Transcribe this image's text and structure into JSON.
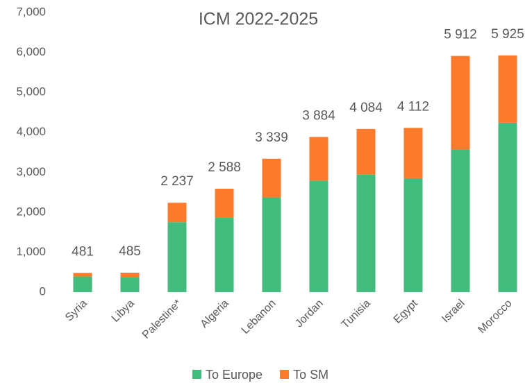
{
  "chart_data": {
    "type": "stacked_bar",
    "title": "ICM 2022-2025",
    "categories": [
      "Syria",
      "Libya",
      "Palestine*",
      "Algeria",
      "Lebanon",
      "Jordan",
      "Tunisia",
      "Egypt",
      "Israel",
      "Morocco"
    ],
    "series": [
      {
        "name": "To Europe",
        "color": "#43bb7d",
        "values": [
          390,
          380,
          1750,
          1860,
          2370,
          2790,
          2940,
          2850,
          3570,
          4240
        ]
      },
      {
        "name": "To SM",
        "color": "#fb7a2c",
        "values": [
          91,
          105,
          487,
          728,
          969,
          1094,
          1144,
          1262,
          2342,
          1685
        ]
      }
    ],
    "totals": [
      481,
      485,
      2237,
      2588,
      3339,
      3884,
      4084,
      4112,
      5912,
      5925
    ],
    "total_labels": [
      "481",
      "485",
      "2 237",
      "2 588",
      "3 339",
      "3 884",
      "4 084",
      "4 112",
      "5 912",
      "5 925"
    ],
    "ylim": [
      0,
      7000
    ],
    "yticks": [
      0,
      {
        "value": 1000,
        "label": "1,000"
      },
      {
        "value": 2000,
        "label": "2,000"
      },
      {
        "value": 3000,
        "label": "3,000"
      },
      {
        "value": 4000,
        "label": "4,000"
      },
      {
        "value": 5000,
        "label": "5,000"
      },
      {
        "value": 6000,
        "label": "6,000"
      },
      {
        "value": 7000,
        "label": "7,000"
      }
    ],
    "grid": false,
    "legend": "bottom"
  }
}
